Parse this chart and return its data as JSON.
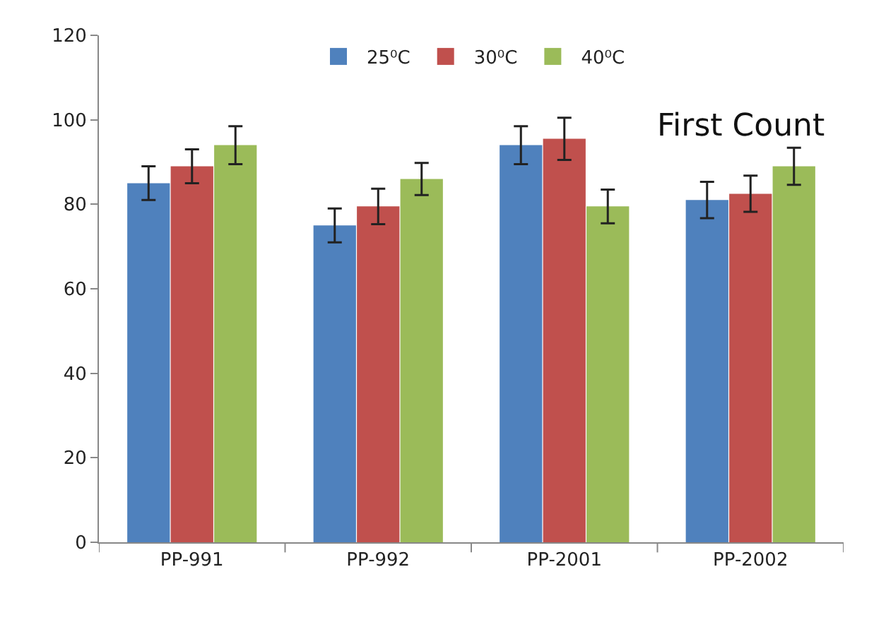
{
  "chart_data": {
    "type": "bar",
    "categories": [
      "PP-991",
      "PP-992",
      "PP-2001",
      "PP-2002"
    ],
    "series": [
      {
        "name": "25⁰C",
        "color": "#4f81bd",
        "values": [
          85,
          75,
          94,
          81
        ],
        "errors": [
          4,
          4,
          4.5,
          4.3
        ]
      },
      {
        "name": "30⁰C",
        "color": "#c0504d",
        "values": [
          89,
          79.5,
          95.5,
          82.5
        ],
        "errors": [
          4,
          4.2,
          5,
          4.3
        ]
      },
      {
        "name": "40⁰C",
        "color": "#9bbb59",
        "values": [
          94,
          86,
          79.5,
          89
        ],
        "errors": [
          4.5,
          3.8,
          4,
          4.4
        ]
      }
    ],
    "annotations": [
      "First Count"
    ],
    "ylim": [
      0,
      120
    ],
    "yticks": [
      0,
      20,
      40,
      60,
      80,
      100,
      120
    ],
    "legend": "top"
  }
}
